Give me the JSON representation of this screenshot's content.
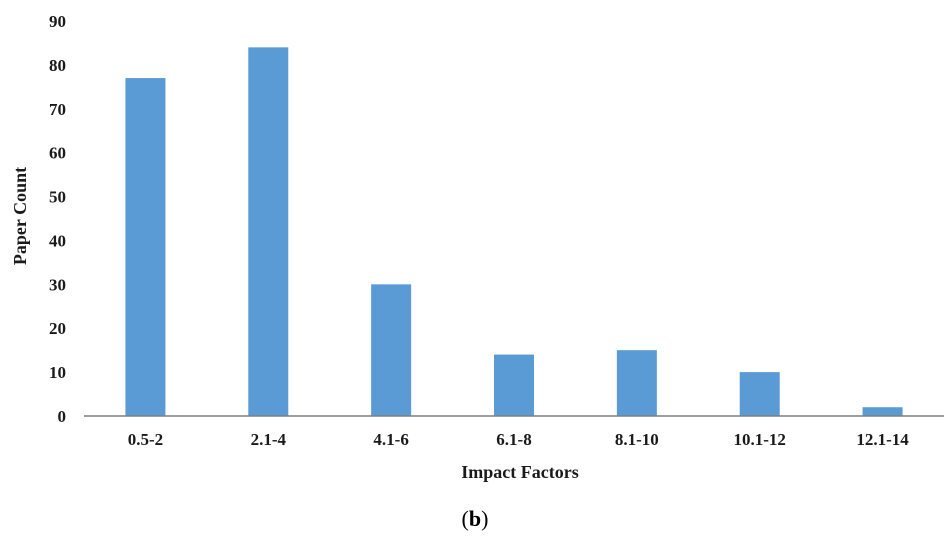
{
  "chart_data": {
    "type": "bar",
    "categories": [
      "0.5-2",
      "2.1-4",
      "4.1-6",
      "6.1-8",
      "8.1-10",
      "10.1-12",
      "12.1-14"
    ],
    "values": [
      77,
      84,
      30,
      14,
      15,
      10,
      2
    ],
    "xlabel": "Impact Factors",
    "ylabel": "Paper Count",
    "ylim": [
      0,
      90
    ],
    "yticks": [
      0,
      10,
      20,
      30,
      40,
      50,
      60,
      70,
      80,
      90
    ],
    "grid": false,
    "legend": "none",
    "bar_color": "#5B9BD5"
  },
  "panel_label": {
    "open": "(",
    "letter": "b",
    "close": ")"
  }
}
